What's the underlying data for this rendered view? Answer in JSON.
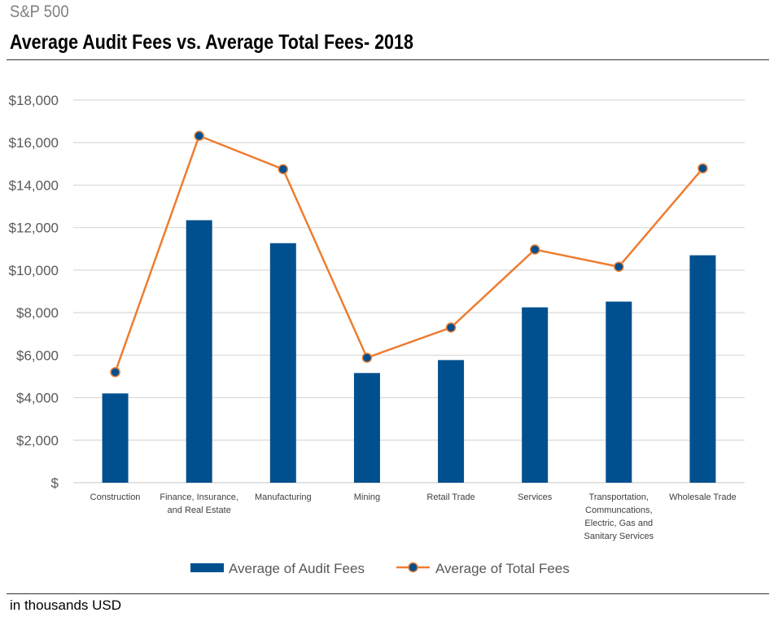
{
  "supertitle": "S&P 500",
  "footnote": "in thousands USD",
  "chart_data": {
    "type": "bar+line",
    "title": "Average Audit Fees vs. Average Total Fees- 2018",
    "categories": [
      [
        "Construction"
      ],
      [
        "Finance, Insurance,",
        "and Real Estate"
      ],
      [
        "Manufacturing"
      ],
      [
        "Mining"
      ],
      [
        "Retail Trade"
      ],
      [
        "Services"
      ],
      [
        "Transportation,",
        "Communcations,",
        "Electric, Gas and",
        "Sanitary Services"
      ],
      [
        "Wholesale Trade"
      ]
    ],
    "yticks": [
      "$",
      "$2,000",
      "$4,000",
      "$6,000",
      "$8,000",
      "$10,000",
      "$12,000",
      "$14,000",
      "$16,000",
      "$18,000"
    ],
    "ylim": [
      0,
      18000
    ],
    "grid": true,
    "legend_position": "bottom",
    "series": [
      {
        "name": "Average of Audit Fees",
        "type": "bar",
        "color": "#00508F",
        "values": [
          4200,
          12350,
          11270,
          5160,
          5770,
          8250,
          8520,
          10700
        ]
      },
      {
        "name": "Average of Total Fees",
        "type": "line",
        "color": "#ED7D31",
        "marker_color": "#00508F",
        "values": [
          5200,
          16320,
          14750,
          5880,
          7300,
          10970,
          10160,
          14790
        ]
      }
    ]
  }
}
